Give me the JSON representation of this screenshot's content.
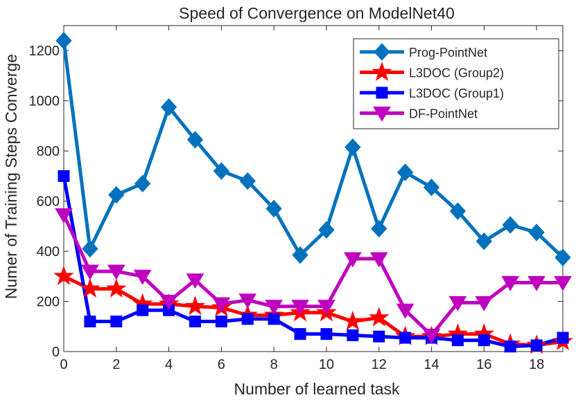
{
  "chart_data": {
    "type": "line",
    "title": "Speed of Convergence on ModelNet40",
    "xlabel": "Number of learned task",
    "ylabel": "Numer of Training Steps Converge",
    "xlim": [
      0,
      19
    ],
    "ylim": [
      0,
      1300
    ],
    "xticks": [
      0,
      2,
      4,
      6,
      8,
      10,
      12,
      14,
      16,
      18
    ],
    "yticks": [
      0,
      200,
      400,
      600,
      800,
      1000,
      1200
    ],
    "legend_position": "top-right",
    "x": [
      0,
      1,
      2,
      3,
      4,
      5,
      6,
      7,
      8,
      9,
      10,
      11,
      12,
      13,
      14,
      15,
      16,
      17,
      18,
      19
    ],
    "series": [
      {
        "name": "Prog-PointNet",
        "color": "#0072BD",
        "marker": "diamond",
        "values": [
          1240,
          410,
          625,
          670,
          975,
          845,
          720,
          680,
          570,
          385,
          485,
          815,
          490,
          715,
          655,
          560,
          440,
          505,
          475,
          375
        ]
      },
      {
        "name": "L3DOC (Group2)",
        "color": "#FF0000",
        "marker": "star",
        "values": [
          300,
          250,
          250,
          190,
          190,
          180,
          175,
          145,
          145,
          155,
          155,
          120,
          135,
          60,
          60,
          70,
          70,
          30,
          25,
          40
        ]
      },
      {
        "name": "L3DOC (Group1)",
        "color": "#0000FF",
        "marker": "square",
        "values": [
          700,
          120,
          120,
          165,
          165,
          120,
          120,
          130,
          130,
          70,
          70,
          65,
          60,
          55,
          55,
          45,
          45,
          20,
          25,
          55
        ]
      },
      {
        "name": "DF-PointNet",
        "color": "#BF00BF",
        "marker": "triangle-down",
        "values": [
          545,
          320,
          320,
          300,
          200,
          285,
          190,
          205,
          180,
          180,
          180,
          370,
          370,
          165,
          65,
          195,
          195,
          275,
          275,
          275
        ]
      }
    ]
  }
}
